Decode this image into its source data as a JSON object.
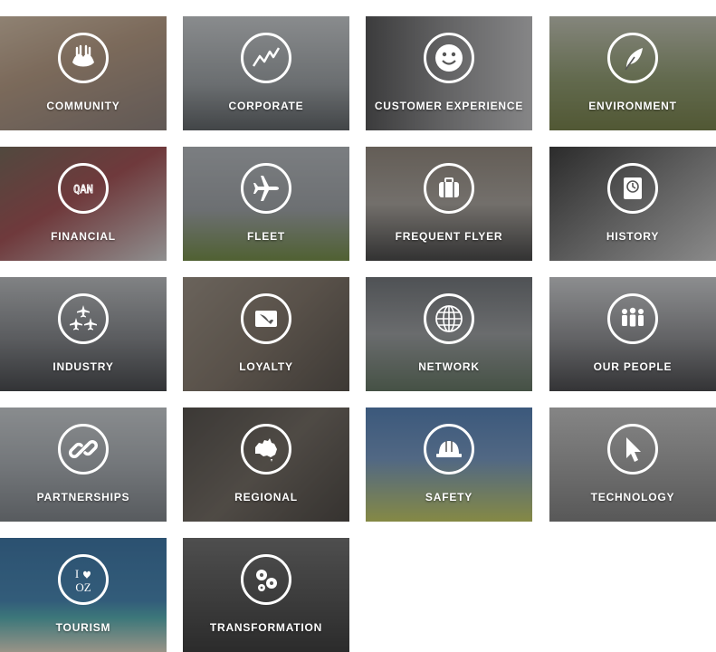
{
  "tiles": [
    {
      "label": "COMMUNITY",
      "icon": "community-hands-icon"
    },
    {
      "label": "CORPORATE",
      "icon": "line-chart-icon"
    },
    {
      "label": "CUSTOMER EXPERIENCE",
      "icon": "smiley-icon"
    },
    {
      "label": "ENVIRONMENT",
      "icon": "leaf-icon"
    },
    {
      "label": "FINANCIAL",
      "icon": "qan-ticker-icon"
    },
    {
      "label": "FLEET",
      "icon": "airplane-icon"
    },
    {
      "label": "FREQUENT FLYER",
      "icon": "suitcase-icon"
    },
    {
      "label": "HISTORY",
      "icon": "clock-icon"
    },
    {
      "label": "INDUSTRY",
      "icon": "three-planes-icon"
    },
    {
      "label": "LOYALTY",
      "icon": "kangaroo-card-icon"
    },
    {
      "label": "NETWORK",
      "icon": "globe-icon"
    },
    {
      "label": "OUR PEOPLE",
      "icon": "people-group-icon"
    },
    {
      "label": "PARTNERSHIPS",
      "icon": "chain-link-icon"
    },
    {
      "label": "REGIONAL",
      "icon": "australia-map-icon"
    },
    {
      "label": "SAFETY",
      "icon": "hard-hat-icon"
    },
    {
      "label": "TECHNOLOGY",
      "icon": "cursor-arrow-icon"
    },
    {
      "label": "TOURISM",
      "icon": "i-love-oz-icon",
      "icon_text_top": "I",
      "icon_text_bottom": "OZ"
    },
    {
      "label": "TRANSFORMATION",
      "icon": "gears-icon"
    }
  ],
  "icon_text": {
    "financial": "QAN"
  }
}
